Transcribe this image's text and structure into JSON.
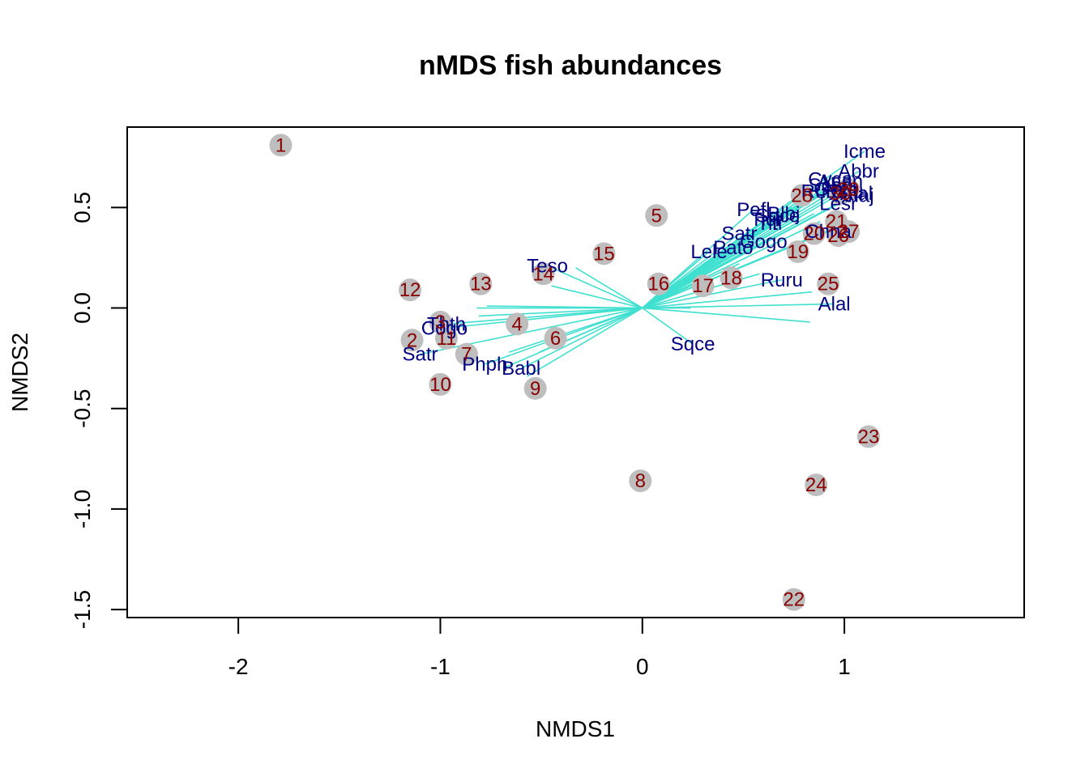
{
  "chart_data": {
    "type": "scatter",
    "title": "nMDS fish abundances",
    "xlabel": "NMDS1",
    "ylabel": "NMDS2",
    "xlim": [
      -2.55,
      1.89
    ],
    "ylim": [
      -1.54,
      0.9
    ],
    "xticks": [
      -2,
      -1,
      0,
      1
    ],
    "yticks": [
      -1.5,
      -1.0,
      -0.5,
      0.0,
      0.5
    ],
    "xtick_labels": [
      "-2",
      "-1",
      "0",
      "1"
    ],
    "ytick_labels": [
      "-1.5",
      "-1.0",
      "-0.5",
      "0.0",
      "0.5"
    ],
    "colors": {
      "point_fill": "#bebebe",
      "site_label": "#8b0000",
      "species_label": "#000080",
      "vector": "#40e0d0",
      "axis": "#000000"
    },
    "sites": [
      {
        "label": "1",
        "x": -1.79,
        "y": 0.81
      },
      {
        "label": "2",
        "x": -1.14,
        "y": -0.16
      },
      {
        "label": "3",
        "x": -1.0,
        "y": -0.07
      },
      {
        "label": "4",
        "x": -0.62,
        "y": -0.08
      },
      {
        "label": "5",
        "x": 0.07,
        "y": 0.46
      },
      {
        "label": "6",
        "x": -0.43,
        "y": -0.15
      },
      {
        "label": "7",
        "x": -0.87,
        "y": -0.23
      },
      {
        "label": "8",
        "x": -0.01,
        "y": -0.86
      },
      {
        "label": "9",
        "x": -0.53,
        "y": -0.4
      },
      {
        "label": "10",
        "x": -1.0,
        "y": -0.38
      },
      {
        "label": "11",
        "x": -0.97,
        "y": -0.15
      },
      {
        "label": "12",
        "x": -1.15,
        "y": 0.09
      },
      {
        "label": "13",
        "x": -0.8,
        "y": 0.12
      },
      {
        "label": "14",
        "x": -0.49,
        "y": 0.17
      },
      {
        "label": "15",
        "x": -0.19,
        "y": 0.27
      },
      {
        "label": "16",
        "x": 0.08,
        "y": 0.12
      },
      {
        "label": "17",
        "x": 0.3,
        "y": 0.11
      },
      {
        "label": "18",
        "x": 0.44,
        "y": 0.15
      },
      {
        "label": "19",
        "x": 0.77,
        "y": 0.28
      },
      {
        "label": "20",
        "x": 0.85,
        "y": 0.37
      },
      {
        "label": "21",
        "x": 0.96,
        "y": 0.43
      },
      {
        "label": "22",
        "x": 0.75,
        "y": -1.45
      },
      {
        "label": "23",
        "x": 1.12,
        "y": -0.64
      },
      {
        "label": "24",
        "x": 0.86,
        "y": -0.88
      },
      {
        "label": "25",
        "x": 0.92,
        "y": 0.12
      },
      {
        "label": "26",
        "x": 0.97,
        "y": 0.36
      },
      {
        "label": "27",
        "x": 1.02,
        "y": 0.38
      },
      {
        "label": "28",
        "x": 0.79,
        "y": 0.56
      },
      {
        "label": "29",
        "x": 1.02,
        "y": 0.59
      },
      {
        "label": "30",
        "x": 0.98,
        "y": 0.57
      }
    ],
    "species": [
      {
        "label": "Icme",
        "x": 1.1,
        "y": 0.78
      },
      {
        "label": "Abbr",
        "x": 1.07,
        "y": 0.68
      },
      {
        "label": "Cyca",
        "x": 0.93,
        "y": 0.64
      },
      {
        "label": "Anan",
        "x": 0.98,
        "y": 0.63
      },
      {
        "label": "Scer",
        "x": 0.92,
        "y": 0.61
      },
      {
        "label": "Gyce",
        "x": 0.96,
        "y": 0.59
      },
      {
        "label": "Eslu",
        "x": 1.0,
        "y": 0.58
      },
      {
        "label": "Ruru",
        "x": 0.89,
        "y": 0.58
      },
      {
        "label": "Alal",
        "x": 1.06,
        "y": 0.57
      },
      {
        "label": "Anaj",
        "x": 1.05,
        "y": 0.56
      },
      {
        "label": "Lesr",
        "x": 0.97,
        "y": 0.52
      },
      {
        "label": "Pefl",
        "x": 0.55,
        "y": 0.49
      },
      {
        "label": "Blbj",
        "x": 0.7,
        "y": 0.47
      },
      {
        "label": "Sqce",
        "x": 0.67,
        "y": 0.46
      },
      {
        "label": "Tiqi",
        "x": 0.61,
        "y": 0.44
      },
      {
        "label": "Titi",
        "x": 0.63,
        "y": 0.42
      },
      {
        "label": "Chna",
        "x": 0.92,
        "y": 0.38
      },
      {
        "label": "Satr",
        "x": 0.48,
        "y": 0.37
      },
      {
        "label": "Gogo",
        "x": 0.6,
        "y": 0.33
      },
      {
        "label": "Lele",
        "x": 0.33,
        "y": 0.28
      },
      {
        "label": "Teso",
        "x": -0.47,
        "y": 0.21
      },
      {
        "label": "Ruru",
        "x": 0.69,
        "y": 0.14
      },
      {
        "label": "Alal",
        "x": 0.95,
        "y": 0.02
      },
      {
        "label": "Sqce",
        "x": 0.25,
        "y": -0.18
      },
      {
        "label": "Cogo",
        "x": -0.98,
        "y": -0.1
      },
      {
        "label": "Thth",
        "x": -0.97,
        "y": -0.08
      },
      {
        "label": "Phph",
        "x": -0.78,
        "y": -0.28
      },
      {
        "label": "Babl",
        "x": -0.6,
        "y": -0.3
      },
      {
        "label": "Satr",
        "x": -1.1,
        "y": -0.23
      },
      {
        "label": "Pato",
        "x": 0.45,
        "y": 0.3
      }
    ],
    "species_vectors": [
      {
        "x": 1.1,
        "y": 0.78
      },
      {
        "x": 1.07,
        "y": 0.68
      },
      {
        "x": 0.93,
        "y": 0.64
      },
      {
        "x": 0.98,
        "y": 0.63
      },
      {
        "x": 0.92,
        "y": 0.61
      },
      {
        "x": 0.96,
        "y": 0.59
      },
      {
        "x": 1.0,
        "y": 0.58
      },
      {
        "x": 0.89,
        "y": 0.58
      },
      {
        "x": 1.06,
        "y": 0.57
      },
      {
        "x": 1.05,
        "y": 0.56
      },
      {
        "x": 0.97,
        "y": 0.52
      },
      {
        "x": 0.55,
        "y": 0.49
      },
      {
        "x": 0.7,
        "y": 0.47
      },
      {
        "x": 0.67,
        "y": 0.46
      },
      {
        "x": 0.61,
        "y": 0.44
      },
      {
        "x": 0.63,
        "y": 0.42
      },
      {
        "x": 0.92,
        "y": 0.38
      },
      {
        "x": 0.48,
        "y": 0.37
      },
      {
        "x": 0.6,
        "y": 0.33
      },
      {
        "x": 0.33,
        "y": 0.28
      },
      {
        "x": -0.47,
        "y": 0.21
      },
      {
        "x": 0.69,
        "y": 0.14
      },
      {
        "x": 0.95,
        "y": 0.02
      },
      {
        "x": 0.25,
        "y": -0.18
      },
      {
        "x": -0.98,
        "y": -0.1
      },
      {
        "x": -0.97,
        "y": -0.08
      },
      {
        "x": -0.78,
        "y": -0.28
      },
      {
        "x": -0.6,
        "y": -0.3
      },
      {
        "x": -1.1,
        "y": -0.23
      },
      {
        "x": 0.45,
        "y": 0.3
      },
      {
        "x": 0.82,
        "y": 0.55
      },
      {
        "x": 0.74,
        "y": 0.5
      },
      {
        "x": 0.85,
        "y": 0.47
      },
      {
        "x": 0.78,
        "y": 0.45
      },
      {
        "x": 0.88,
        "y": 0.43
      },
      {
        "x": 1.0,
        "y": 0.42
      },
      {
        "x": 0.96,
        "y": 0.66
      },
      {
        "x": 1.04,
        "y": 0.62
      },
      {
        "x": 0.83,
        "y": 0.6
      },
      {
        "x": 0.58,
        "y": 0.17
      },
      {
        "x": 0.48,
        "y": 0.22
      },
      {
        "x": 0.84,
        "y": 0.08
      },
      {
        "x": 0.24,
        "y": 0.0
      },
      {
        "x": 0.83,
        "y": -0.07
      },
      {
        "x": -0.82,
        "y": 0.0
      },
      {
        "x": -0.77,
        "y": 0.01
      },
      {
        "x": -0.81,
        "y": -0.04
      },
      {
        "x": -0.66,
        "y": -0.22
      },
      {
        "x": -0.51,
        "y": -0.22
      },
      {
        "x": -0.69,
        "y": -0.3
      },
      {
        "x": -0.57,
        "y": -0.34
      },
      {
        "x": -0.33,
        "y": 0.2
      },
      {
        "x": -0.45,
        "y": 0.11
      },
      {
        "x": 0.36,
        "y": 0.23
      },
      {
        "x": 0.28,
        "y": 0.16
      }
    ]
  }
}
